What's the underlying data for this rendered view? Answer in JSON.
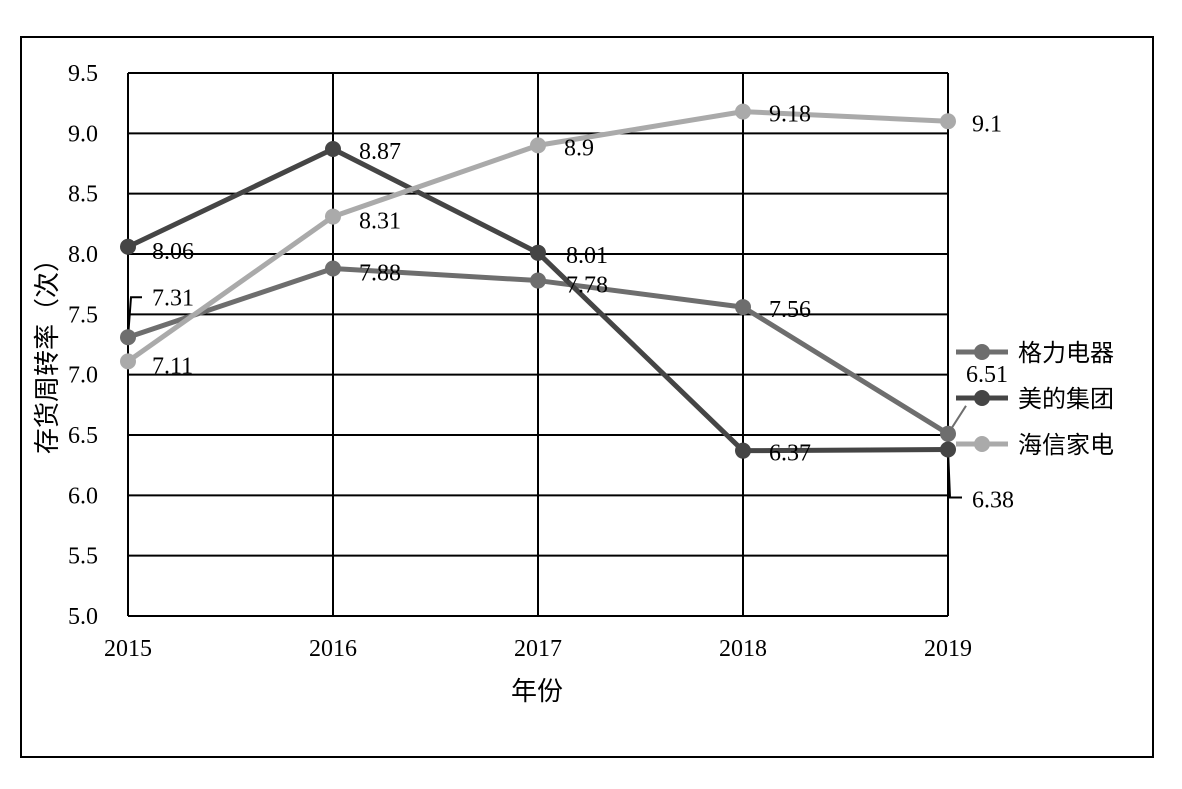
{
  "chart_data": {
    "type": "line",
    "title": "",
    "xlabel": "年份",
    "ylabel": "存货周转率（次）",
    "categories": [
      "2015",
      "2016",
      "2017",
      "2018",
      "2019"
    ],
    "ylim": [
      5.0,
      9.5
    ],
    "yticks": [
      "5.0",
      "5.5",
      "6.0",
      "6.5",
      "7.0",
      "7.5",
      "8.0",
      "8.5",
      "9.0",
      "9.5"
    ],
    "grid": true,
    "legend_position": "right",
    "series": [
      {
        "name": "格力电器",
        "color": "#6e6e6e",
        "values": [
          7.31,
          7.88,
          7.78,
          7.56,
          6.51
        ],
        "labels": [
          "7.31",
          "7.88",
          "7.78",
          "7.56",
          "6.51"
        ]
      },
      {
        "name": "美的集团",
        "color": "#454545",
        "values": [
          8.06,
          8.87,
          8.01,
          6.37,
          6.38
        ],
        "labels": [
          "8.06",
          "8.87",
          "8.01",
          "6.37",
          "6.38"
        ]
      },
      {
        "name": "海信家电",
        "color": "#aaaaaa",
        "values": [
          7.11,
          8.31,
          8.9,
          9.18,
          9.1
        ],
        "labels": [
          "7.11",
          "8.31",
          "8.9",
          "9.18",
          "9.1"
        ]
      }
    ]
  }
}
